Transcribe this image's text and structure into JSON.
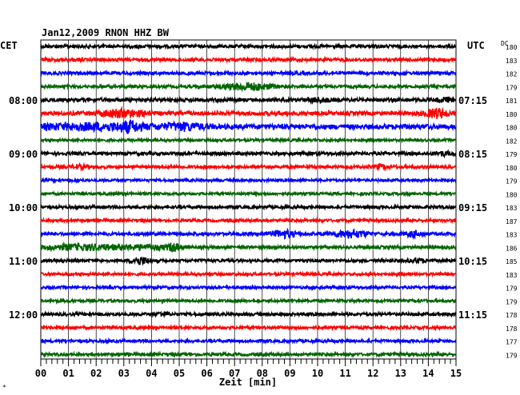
{
  "chart_data": {
    "type": "line",
    "title": "Jan12,2009   RNON HHZ BW",
    "left_label": "CET",
    "right_label": "UTC",
    "dc_label": "DC",
    "xlabel": "Zeit [min]",
    "xlim": [
      0,
      15
    ],
    "x_ticks": [
      "00",
      "01",
      "02",
      "03",
      "04",
      "05",
      "06",
      "07",
      "08",
      "09",
      "10",
      "11",
      "12",
      "13",
      "14",
      "15"
    ],
    "left_time_labels": [
      {
        "trace": 4,
        "text": "08:00"
      },
      {
        "trace": 8,
        "text": "09:00"
      },
      {
        "trace": 12,
        "text": "10:00"
      },
      {
        "trace": 16,
        "text": "11:00"
      },
      {
        "trace": 20,
        "text": "12:00"
      }
    ],
    "right_time_labels": [
      {
        "trace": 4,
        "text": "07:15"
      },
      {
        "trace": 8,
        "text": "08:15"
      },
      {
        "trace": 12,
        "text": "09:15"
      },
      {
        "trace": 16,
        "text": "10:15"
      },
      {
        "trace": 20,
        "text": "11:15"
      }
    ],
    "colors": [
      "#000000",
      "#ff0000",
      "#0000ff",
      "#006400"
    ],
    "dc_values": [
      "180",
      "183",
      "182",
      "179",
      "181",
      "180",
      "180",
      "182",
      "179",
      "180",
      "179",
      "180",
      "183",
      "187",
      "183",
      "186",
      "185",
      "183",
      "179",
      "179",
      "178",
      "178",
      "177",
      "179"
    ],
    "traces": [
      {
        "amplitude": 2.0,
        "bursts": []
      },
      {
        "amplitude": 2.0,
        "bursts": []
      },
      {
        "amplitude": 2.0,
        "bursts": []
      },
      {
        "amplitude": 1.8,
        "bursts": [
          {
            "t": 7.5,
            "w": 0.9,
            "a": 4
          }
        ]
      },
      {
        "amplitude": 2.2,
        "bursts": [
          {
            "t": 10.0,
            "w": 0.4,
            "a": 2
          },
          {
            "t": 14.6,
            "w": 0.3,
            "a": 2
          }
        ]
      },
      {
        "amplitude": 2.4,
        "bursts": [
          {
            "t": 2.9,
            "w": 0.8,
            "a": 4
          },
          {
            "t": 14.3,
            "w": 0.4,
            "a": 5
          }
        ]
      },
      {
        "amplitude": 3.0,
        "bursts": [
          {
            "t": 2.0,
            "w": 2.5,
            "a": 3
          },
          {
            "t": 3.2,
            "w": 0.3,
            "a": 4
          },
          {
            "t": 5.2,
            "w": 0.6,
            "a": 3
          }
        ]
      },
      {
        "amplitude": 1.6,
        "bursts": []
      },
      {
        "amplitude": 2.0,
        "bursts": [
          {
            "t": 14.5,
            "w": 0.3,
            "a": 2
          }
        ]
      },
      {
        "amplitude": 1.9,
        "bursts": [
          {
            "t": 1.4,
            "w": 0.3,
            "a": 2
          },
          {
            "t": 12.3,
            "w": 0.3,
            "a": 2
          }
        ]
      },
      {
        "amplitude": 1.6,
        "bursts": []
      },
      {
        "amplitude": 1.6,
        "bursts": []
      },
      {
        "amplitude": 1.9,
        "bursts": []
      },
      {
        "amplitude": 1.7,
        "bursts": []
      },
      {
        "amplitude": 2.0,
        "bursts": [
          {
            "t": 8.8,
            "w": 0.4,
            "a": 4
          },
          {
            "t": 11.2,
            "w": 0.6,
            "a": 4
          },
          {
            "t": 13.5,
            "w": 0.3,
            "a": 3
          }
        ]
      },
      {
        "amplitude": 1.9,
        "bursts": [
          {
            "t": 1.5,
            "w": 1.5,
            "a": 3
          },
          {
            "t": 3.8,
            "w": 1.0,
            "a": 2
          },
          {
            "t": 4.8,
            "w": 0.2,
            "a": 4
          }
        ]
      },
      {
        "amplitude": 1.8,
        "bursts": [
          {
            "t": 3.6,
            "w": 0.3,
            "a": 4
          },
          {
            "t": 13.6,
            "w": 0.3,
            "a": 2
          }
        ]
      },
      {
        "amplitude": 1.7,
        "bursts": []
      },
      {
        "amplitude": 1.7,
        "bursts": []
      },
      {
        "amplitude": 1.7,
        "bursts": []
      },
      {
        "amplitude": 1.9,
        "bursts": [
          {
            "t": 4.4,
            "w": 0.2,
            "a": 2
          }
        ]
      },
      {
        "amplitude": 1.8,
        "bursts": []
      },
      {
        "amplitude": 1.8,
        "bursts": []
      },
      {
        "amplitude": 1.8,
        "bursts": []
      }
    ]
  }
}
